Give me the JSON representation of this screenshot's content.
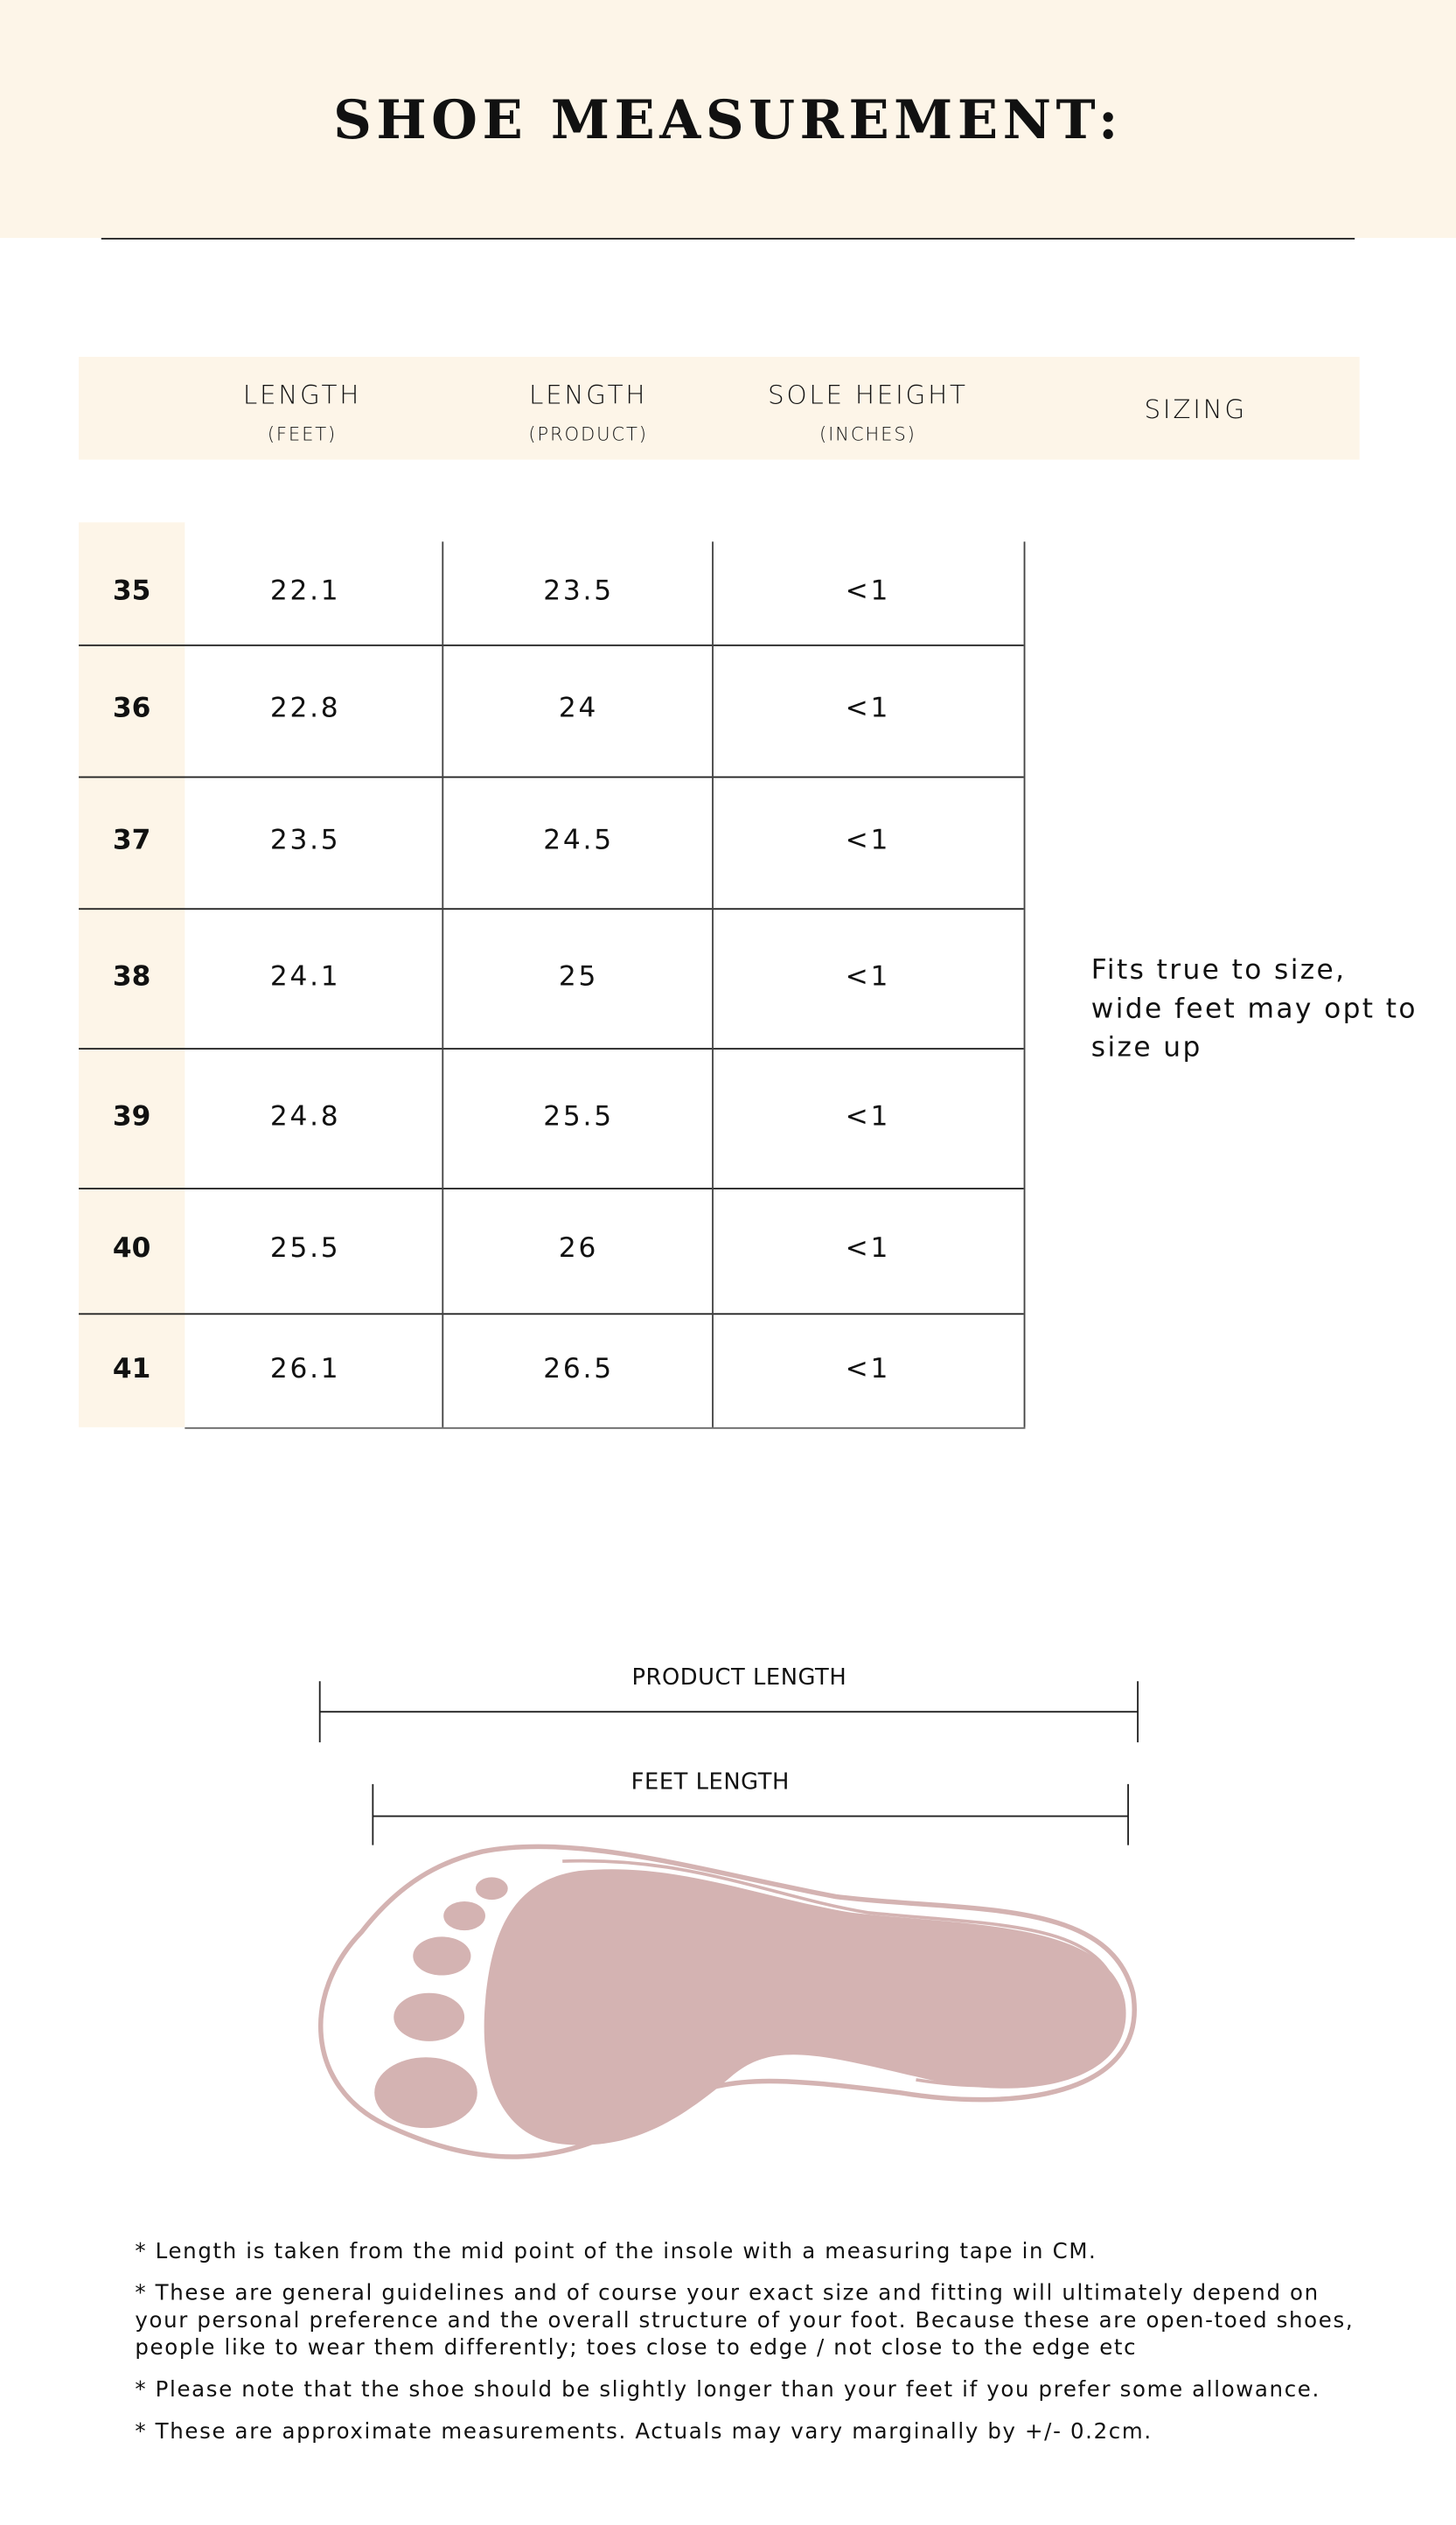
{
  "title": "SHOE MEASUREMENT:",
  "table": {
    "headers": [
      {
        "label": "LENGTH",
        "sub": "(FEET)"
      },
      {
        "label": "LENGTH",
        "sub": "(PRODUCT)"
      },
      {
        "label": "SOLE HEIGHT",
        "sub": "(INCHES)"
      },
      {
        "label": "SIZING"
      }
    ],
    "rows": [
      {
        "size": "35",
        "feet": "22.1",
        "product": "23.5",
        "sole": "<1"
      },
      {
        "size": "36",
        "feet": "22.8",
        "product": "24",
        "sole": "<1"
      },
      {
        "size": "37",
        "feet": "23.5",
        "product": "24.5",
        "sole": "<1"
      },
      {
        "size": "38",
        "feet": "24.1",
        "product": "25",
        "sole": "<1"
      },
      {
        "size": "39",
        "feet": "24.8",
        "product": "25.5",
        "sole": "<1"
      },
      {
        "size": "40",
        "feet": "25.5",
        "product": "26",
        "sole": "<1"
      },
      {
        "size": "41",
        "feet": "26.1",
        "product": "26.5",
        "sole": "<1"
      }
    ],
    "sizing_note": "Fits true to size, wide feet may opt to size up"
  },
  "diagram": {
    "product_length_label": "PRODUCT LENGTH",
    "feet_length_label": "FEET LENGTH",
    "foot_color": "#d4b3b2"
  },
  "notes": [
    "* Length is taken from the mid point of the insole with a measuring tape in CM.",
    "* These are general guidelines and of course your exact size and fitting will ultimately depend on your personal preference and the overall structure of your foot. Because these are open-toed shoes, people like to wear them differently; toes close to edge / not close to the edge etc",
    "* Please note that the shoe should be slightly longer than your feet if you prefer some allowance.",
    "* These are approximate measurements. Actuals may vary marginally by +/- 0.2cm."
  ],
  "colors": {
    "band": "#fdf5e8",
    "accent": "#d4b3b2"
  }
}
